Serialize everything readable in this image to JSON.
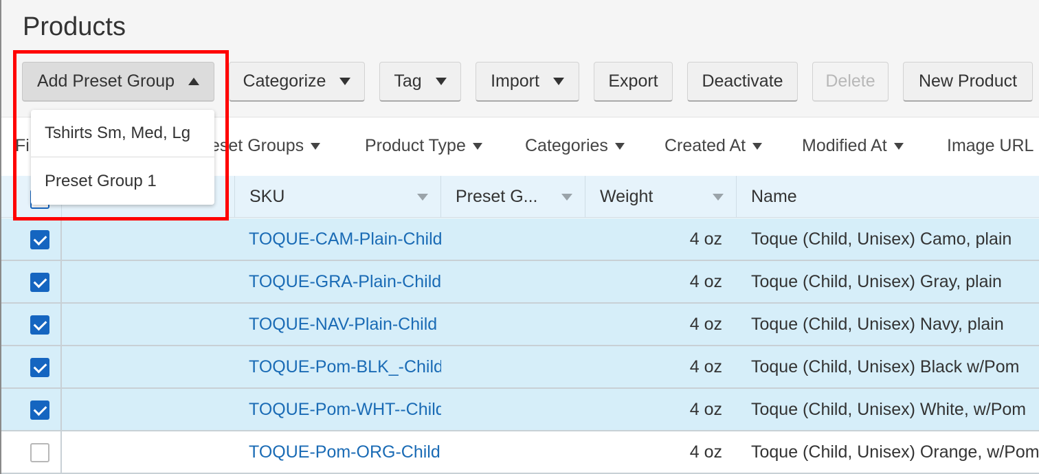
{
  "page": {
    "title": "Products"
  },
  "toolbar": {
    "add_preset_group": "Add Preset Group",
    "categorize": "Categorize",
    "tag": "Tag",
    "import": "Import",
    "export": "Export",
    "deactivate": "Deactivate",
    "delete": "Delete",
    "new_product": "New Product"
  },
  "preset_dropdown": {
    "items": [
      {
        "label": "Tshirts Sm, Med, Lg"
      },
      {
        "label": "Preset Group 1"
      }
    ]
  },
  "filters": {
    "first_partial": "Fi",
    "preset_groups": "eset Groups",
    "product_type": "Product Type",
    "categories": "Categories",
    "created_at": "Created At",
    "modified_at": "Modified At",
    "image_url": "Image URL"
  },
  "table": {
    "columns": {
      "sku": "SKU",
      "preset_groups": "Preset G...",
      "weight": "Weight",
      "name": "Name"
    },
    "rows": [
      {
        "checked": true,
        "sku": "TOQUE-CAM-Plain-Child",
        "weight": "4 oz",
        "name": "Toque (Child, Unisex) Camo, plain"
      },
      {
        "checked": true,
        "sku": "TOQUE-GRA-Plain-Child",
        "weight": "4 oz",
        "name": "Toque (Child, Unisex) Gray, plain"
      },
      {
        "checked": true,
        "sku": "TOQUE-NAV-Plain-Child",
        "weight": "4 oz",
        "name": "Toque (Child, Unisex) Navy, plain"
      },
      {
        "checked": true,
        "sku": "TOQUE-Pom-BLK_-Child",
        "weight": "4 oz",
        "name": "Toque (Child, Unisex) Black w/Pom"
      },
      {
        "checked": true,
        "sku": "TOQUE-Pom-WHT--Child",
        "weight": "4 oz",
        "name": "Toque (Child, Unisex) White, w/Pom"
      },
      {
        "checked": false,
        "sku": "TOQUE-Pom-ORG-Child",
        "weight": "4 oz",
        "name": "Toque (Child, Unisex) Orange, w/Pom"
      }
    ]
  },
  "colors": {
    "accent": "#1565c0",
    "link": "#1a6bb5",
    "selected_row": "#d6eef9",
    "highlight": "#ff0000"
  }
}
